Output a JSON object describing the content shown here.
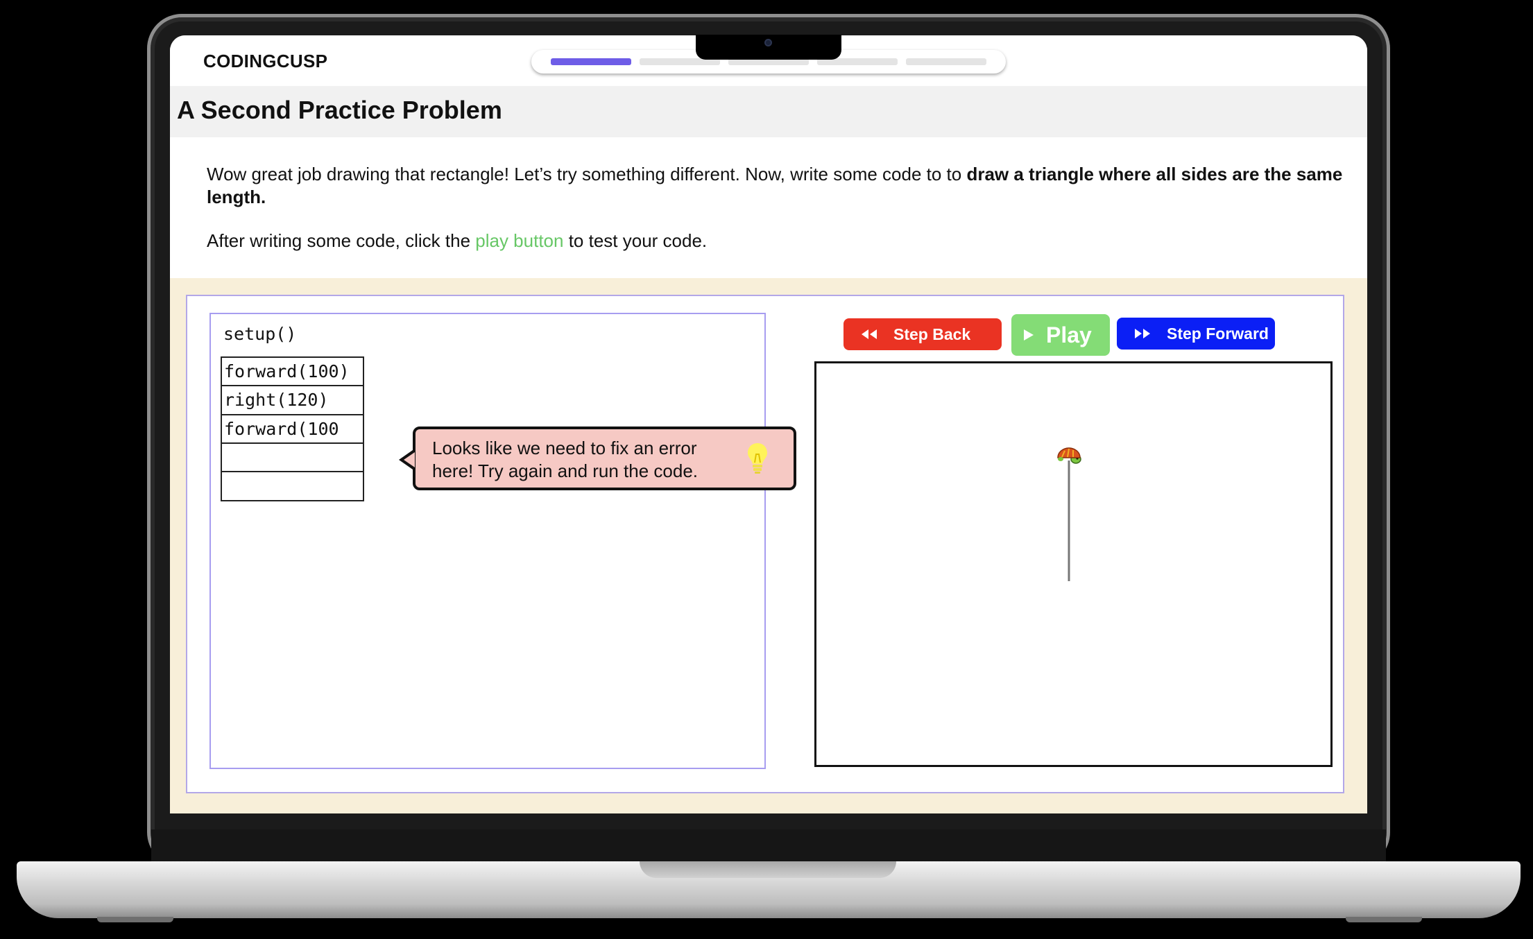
{
  "brand": "CODINGCUSP",
  "progress": {
    "total_steps": 5,
    "current_step": 1
  },
  "lesson": {
    "title": "A Second Practice Problem",
    "intro_plain": "Wow great job drawing that rectangle! Let’s try something different. Now, write some code to to ",
    "intro_bold": "draw a triangle where all sides are the same length.",
    "instruction_before": "After writing some code, click the ",
    "instruction_link": "play button",
    "instruction_after": " to test your code."
  },
  "editor": {
    "header": "setup()",
    "lines": [
      "forward(100)",
      "right(120)",
      "forward(100",
      "",
      ""
    ]
  },
  "tooltip": {
    "message": "Looks like we need to fix an error here! Try again and run the code.",
    "icon": "lightbulb-icon"
  },
  "controls": {
    "step_back": "Step Back",
    "play": "Play",
    "step_forward": "Step Forward"
  },
  "colors": {
    "progress_active": "#6e5de7",
    "play_green": "#84dc76",
    "step_back_red": "#ea3323",
    "step_forward_blue": "#0b1ff5",
    "error_bg": "#f6c9c4",
    "workspace_bg": "#f8efd9"
  },
  "turtle": {
    "icon": "turtle-icon",
    "drawn_segments": 1
  }
}
